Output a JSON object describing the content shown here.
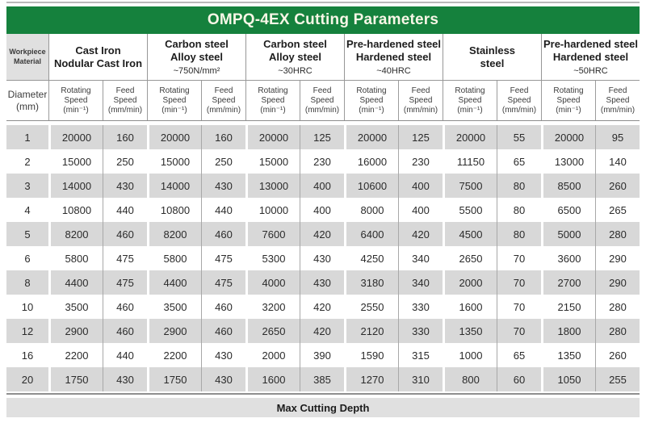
{
  "title": "OMPQ-4EX Cutting Parameters",
  "colors": {
    "accent_green": "#15813d",
    "row_stripe_gray": "#d8d8d8",
    "header_cell_gray": "#e0e0e0"
  },
  "header": {
    "workpiece_material": "Workpiece\nMaterial",
    "diameter": "Diameter\n(mm)",
    "rotating_speed": "Rotating\nSpeed",
    "rotating_unit": "(min⁻¹)",
    "feed_speed": "Feed\nSpeed",
    "feed_unit": "(mm/min)",
    "materials": [
      {
        "name": "Cast Iron\nNodular Cast Iron",
        "spec": ""
      },
      {
        "name": "Carbon steel\nAlloy steel",
        "spec": "~750N/mm²"
      },
      {
        "name": "Carbon steel\nAlloy steel",
        "spec": "~30HRC"
      },
      {
        "name": "Pre-hardened steel\nHardened steel",
        "spec": "~40HRC"
      },
      {
        "name": "Stainless\nsteel",
        "spec": ""
      },
      {
        "name": "Pre-hardened steel\nHardened steel",
        "spec": "~50HRC"
      }
    ]
  },
  "rows": [
    {
      "diameter": "1",
      "values": [
        "20000",
        "160",
        "20000",
        "160",
        "20000",
        "125",
        "20000",
        "125",
        "20000",
        "55",
        "20000",
        "95"
      ]
    },
    {
      "diameter": "2",
      "values": [
        "15000",
        "250",
        "15000",
        "250",
        "15000",
        "230",
        "16000",
        "230",
        "11150",
        "65",
        "13000",
        "140"
      ]
    },
    {
      "diameter": "3",
      "values": [
        "14000",
        "430",
        "14000",
        "430",
        "13000",
        "400",
        "10600",
        "400",
        "7500",
        "80",
        "8500",
        "260"
      ]
    },
    {
      "diameter": "4",
      "values": [
        "10800",
        "440",
        "10800",
        "440",
        "10000",
        "400",
        "8000",
        "400",
        "5500",
        "80",
        "6500",
        "265"
      ]
    },
    {
      "diameter": "5",
      "values": [
        "8200",
        "460",
        "8200",
        "460",
        "7600",
        "420",
        "6400",
        "420",
        "4500",
        "80",
        "5000",
        "280"
      ]
    },
    {
      "diameter": "6",
      "values": [
        "5800",
        "475",
        "5800",
        "475",
        "5300",
        "430",
        "4250",
        "340",
        "2650",
        "70",
        "3600",
        "290"
      ]
    },
    {
      "diameter": "8",
      "values": [
        "4400",
        "475",
        "4400",
        "475",
        "4000",
        "430",
        "3180",
        "340",
        "2000",
        "70",
        "2700",
        "290"
      ]
    },
    {
      "diameter": "10",
      "values": [
        "3500",
        "460",
        "3500",
        "460",
        "3200",
        "420",
        "2550",
        "330",
        "1600",
        "70",
        "2150",
        "280"
      ]
    },
    {
      "diameter": "12",
      "values": [
        "2900",
        "460",
        "2900",
        "460",
        "2650",
        "420",
        "2120",
        "330",
        "1350",
        "70",
        "1800",
        "280"
      ]
    },
    {
      "diameter": "16",
      "values": [
        "2200",
        "440",
        "2200",
        "430",
        "2000",
        "390",
        "1590",
        "315",
        "1000",
        "65",
        "1350",
        "260"
      ]
    },
    {
      "diameter": "20",
      "values": [
        "1750",
        "430",
        "1750",
        "430",
        "1600",
        "385",
        "1270",
        "310",
        "800",
        "60",
        "1050",
        "255"
      ]
    }
  ],
  "footer": {
    "label": "Max Cutting Depth"
  }
}
